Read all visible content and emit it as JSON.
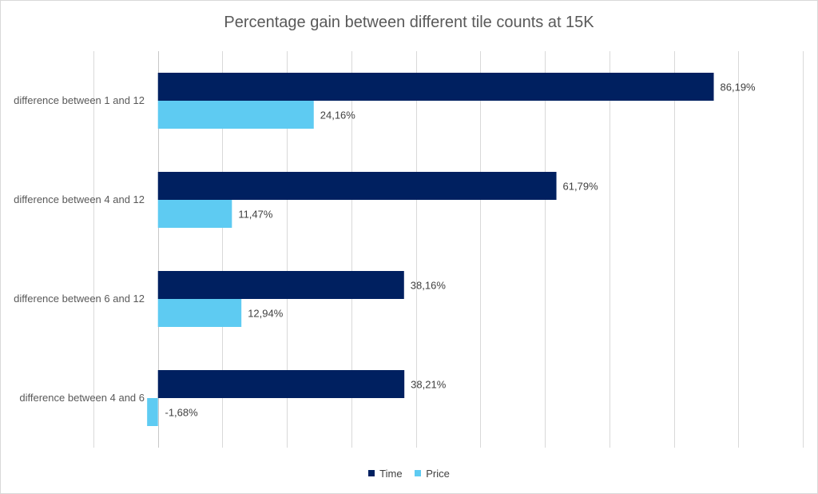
{
  "chart_data": {
    "type": "bar",
    "orientation": "horizontal",
    "title": "Percentage gain between different tile counts at 15K",
    "categories": [
      "difference between 1 and 12",
      "difference between 4 and 12",
      "difference between 6 and 12",
      "difference between 4 and 6"
    ],
    "series": [
      {
        "name": "Time",
        "color": "#002060",
        "values": [
          86.19,
          61.79,
          38.16,
          38.21
        ],
        "labels": [
          "86,19%",
          "61,79%",
          "38,16%",
          "38,21%"
        ]
      },
      {
        "name": "Price",
        "color": "#5ecbf2",
        "values": [
          24.16,
          11.47,
          12.94,
          -1.68
        ],
        "labels": [
          "24,16%",
          "11,47%",
          "12,94%",
          "-1,68%"
        ]
      }
    ],
    "xlim": [
      -10,
      100
    ],
    "grid": true,
    "legend_position": "bottom"
  }
}
